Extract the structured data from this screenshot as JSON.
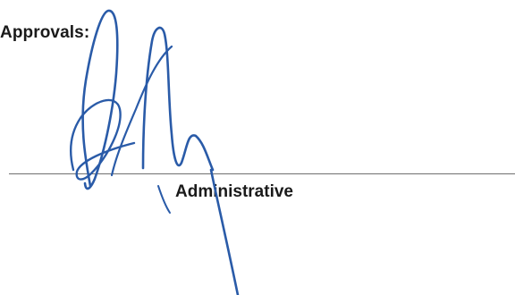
{
  "approvals": {
    "heading": "Approvals:"
  },
  "signature_block": {
    "title": "Administrative",
    "signature_color": "#2a5ba8",
    "rule_color": "#6f6f6f"
  }
}
